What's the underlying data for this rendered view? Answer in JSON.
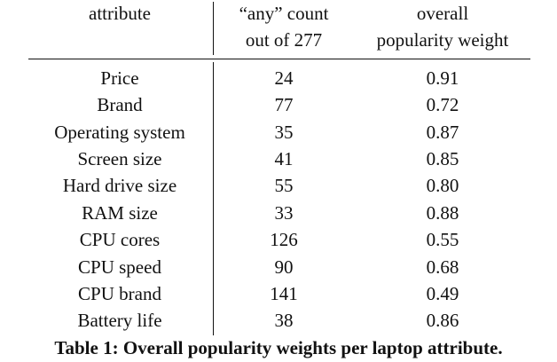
{
  "table": {
    "headers": {
      "attribute": "attribute",
      "any_count_line1": "“any” count",
      "any_count_line2": "out of 277",
      "popularity_line1": "overall",
      "popularity_line2": "popularity weight"
    },
    "rows": [
      {
        "attribute": "Price",
        "any_count": "24",
        "weight": "0.91"
      },
      {
        "attribute": "Brand",
        "any_count": "77",
        "weight": "0.72"
      },
      {
        "attribute": "Operating system",
        "any_count": "35",
        "weight": "0.87"
      },
      {
        "attribute": "Screen size",
        "any_count": "41",
        "weight": "0.85"
      },
      {
        "attribute": "Hard drive size",
        "any_count": "55",
        "weight": "0.80"
      },
      {
        "attribute": "RAM size",
        "any_count": "33",
        "weight": "0.88"
      },
      {
        "attribute": "CPU cores",
        "any_count": "126",
        "weight": "0.55"
      },
      {
        "attribute": "CPU speed",
        "any_count": "90",
        "weight": "0.68"
      },
      {
        "attribute": "CPU brand",
        "any_count": "141",
        "weight": "0.49"
      },
      {
        "attribute": "Battery life",
        "any_count": "38",
        "weight": "0.86"
      }
    ]
  },
  "caption": "Table 1: Overall popularity weights per laptop attribute."
}
